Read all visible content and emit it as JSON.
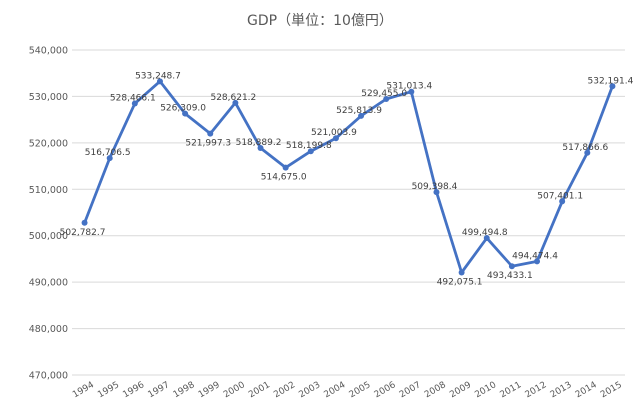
{
  "chart_data": {
    "type": "line",
    "title": "GDP（単位：10億円）",
    "xlabel": "",
    "ylabel": "",
    "ylim": [
      470000,
      540000
    ],
    "ytick_step": 10000,
    "grid": true,
    "legend": "none",
    "line_color": "#4472c4",
    "categories": [
      "1994",
      "1995",
      "1996",
      "1997",
      "1998",
      "1999",
      "2000",
      "2001",
      "2002",
      "2003",
      "2004",
      "2005",
      "2006",
      "2007",
      "2008",
      "2009",
      "2010",
      "2011",
      "2012",
      "2013",
      "2014",
      "2015"
    ],
    "values": [
      502782.7,
      516706.5,
      528466.1,
      533248.7,
      526309.0,
      521997.3,
      528621.2,
      518889.2,
      514675.0,
      518199.8,
      521003.9,
      525813.9,
      529455.0,
      531013.4,
      509398.4,
      492075.1,
      499494.8,
      493433.1,
      494474.4,
      507401.1,
      517866.6,
      532191.4
    ],
    "data_labels": [
      "502,782.7",
      "516,706.5",
      "528,466.1",
      "533,248.7",
      "526,309.0",
      "521,997.3",
      "528,621.2",
      "518,889.2",
      "514,675.0",
      "518,199.8",
      "521,003.9",
      "525,813.9",
      "529,455.0",
      "531,013.4",
      "509,398.4",
      "492,075.1",
      "499,494.8",
      "493,433.1",
      "494,474.4",
      "507,401.1",
      "517,866.6",
      "532,191.4"
    ],
    "ytick_labels": [
      "470,000",
      "480,000",
      "490,000",
      "500,000",
      "510,000",
      "520,000",
      "530,000",
      "540,000"
    ]
  }
}
